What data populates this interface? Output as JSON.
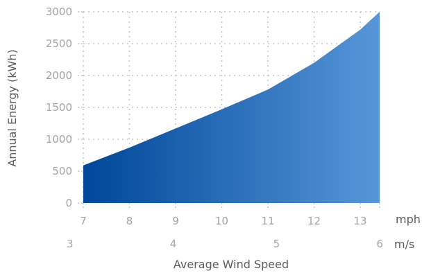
{
  "chart_data": {
    "type": "area",
    "xlabel": "Average Wind Speed",
    "ylabel": "Annual Energy (kWh)",
    "ylim": [
      0,
      3000
    ],
    "yticks": [
      0,
      500,
      1000,
      1500,
      2000,
      2500,
      3000
    ],
    "x_unit_primary": "mph",
    "x_unit_secondary": "m/s",
    "xlim_mph": [
      7,
      13.42
    ],
    "xticks_mph": [
      7,
      8,
      9,
      10,
      11,
      12,
      13
    ],
    "xticks_ms": [
      3,
      4,
      5,
      6
    ],
    "mph_per_ms": 2.237,
    "grid": true,
    "x": [
      7,
      8,
      9,
      10,
      11,
      12,
      13,
      13.42
    ],
    "y": [
      590,
      870,
      1170,
      1470,
      1780,
      2200,
      2720,
      3000
    ],
    "colors": {
      "area_start": "#00479a",
      "area_end": "#5796d8",
      "grid": "#c4c4c4",
      "tick_text": "#a3a3a3",
      "axis_text": "#5a5a5a"
    }
  }
}
